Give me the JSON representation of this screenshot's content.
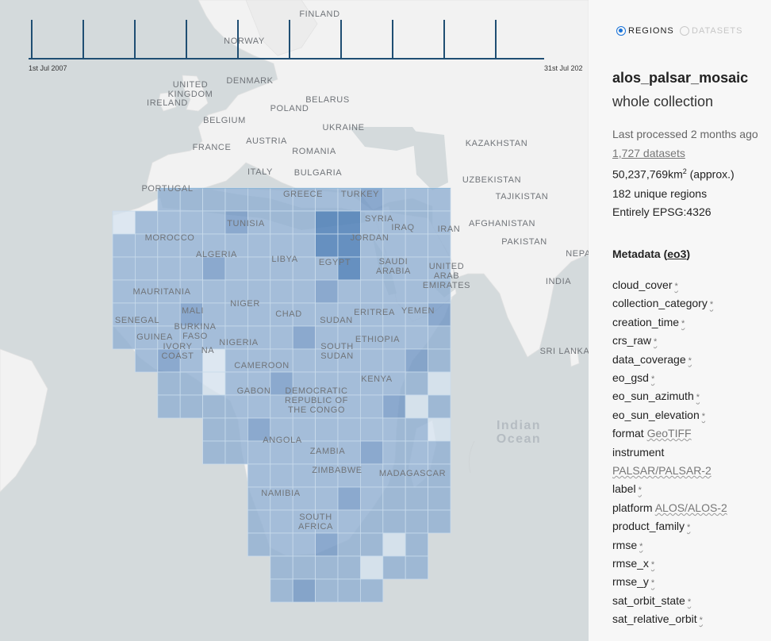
{
  "timeline": {
    "start_label": "1st Jul 2007",
    "end_label": "31st Jul 202"
  },
  "map": {
    "labels": [
      {
        "id": "finland",
        "text": "FINLAND"
      },
      {
        "id": "norway",
        "text": "NORWAY"
      },
      {
        "id": "uk",
        "text": "UNITED\nKINGDOM"
      },
      {
        "id": "denmark",
        "text": "DENMARK"
      },
      {
        "id": "ireland",
        "text": "IRELAND"
      },
      {
        "id": "belarus",
        "text": "BELARUS"
      },
      {
        "id": "poland",
        "text": "POLAND"
      },
      {
        "id": "belgium",
        "text": "BELGIUM"
      },
      {
        "id": "ukraine",
        "text": "UKRAINE"
      },
      {
        "id": "kazakhstan",
        "text": "KAZAKHSTAN"
      },
      {
        "id": "austria",
        "text": "AUSTRIA"
      },
      {
        "id": "france",
        "text": "FRANCE"
      },
      {
        "id": "romania",
        "text": "ROMANIA"
      },
      {
        "id": "italy",
        "text": "ITALY"
      },
      {
        "id": "bulgaria",
        "text": "BULGARIA"
      },
      {
        "id": "uzbekistan",
        "text": "UZBEKISTAN"
      },
      {
        "id": "portugal",
        "text": "PORTUGAL"
      },
      {
        "id": "greece",
        "text": "GREECE"
      },
      {
        "id": "turkey",
        "text": "TURKEY"
      },
      {
        "id": "tajikistan",
        "text": "TAJIKISTAN"
      },
      {
        "id": "syria",
        "text": "SYRIA"
      },
      {
        "id": "afghanistan",
        "text": "AFGHANISTAN"
      },
      {
        "id": "tunisia",
        "text": "TUNISIA"
      },
      {
        "id": "iraq",
        "text": "IRAQ"
      },
      {
        "id": "iran",
        "text": "IRAN"
      },
      {
        "id": "morocco",
        "text": "MOROCCO"
      },
      {
        "id": "jordan",
        "text": "JORDAN"
      },
      {
        "id": "pakistan",
        "text": "PAKISTAN"
      },
      {
        "id": "algeria",
        "text": "ALGERIA"
      },
      {
        "id": "libya",
        "text": "LIBYA"
      },
      {
        "id": "nepal",
        "text": "NEPA"
      },
      {
        "id": "egypt",
        "text": "EGYPT"
      },
      {
        "id": "saudi",
        "text": "SAUDI\nARABIA"
      },
      {
        "id": "uae",
        "text": "UNITED\nARAB\nEMIRATES"
      },
      {
        "id": "india",
        "text": "INDIA"
      },
      {
        "id": "mauritania",
        "text": "MAURITANIA"
      },
      {
        "id": "niger",
        "text": "NIGER"
      },
      {
        "id": "mali",
        "text": "MALI"
      },
      {
        "id": "chad",
        "text": "CHAD"
      },
      {
        "id": "eritrea",
        "text": "ERITREA"
      },
      {
        "id": "yemen",
        "text": "YEMEN"
      },
      {
        "id": "senegal",
        "text": "SENEGAL"
      },
      {
        "id": "sudan",
        "text": "SUDAN"
      },
      {
        "id": "burkina",
        "text": "BURKINA\nFASO"
      },
      {
        "id": "guinea",
        "text": "GUINEA"
      },
      {
        "id": "ivory",
        "text": "IVORY\nCOAST"
      },
      {
        "id": "ghana",
        "text": "NA"
      },
      {
        "id": "nigeria",
        "text": "NIGERIA"
      },
      {
        "id": "ethiopia",
        "text": "ETHIOPIA"
      },
      {
        "id": "southsudan",
        "text": "SOUTH\nSUDAN"
      },
      {
        "id": "srilanka",
        "text": "SRI LANKA"
      },
      {
        "id": "cameroon",
        "text": "CAMEROON"
      },
      {
        "id": "kenya",
        "text": "KENYA"
      },
      {
        "id": "gabon",
        "text": "GABON"
      },
      {
        "id": "drc",
        "text": "DEMOCRATIC\nREPUBLIC OF\nTHE CONGO"
      },
      {
        "id": "angola",
        "text": "ANGOLA"
      },
      {
        "id": "zambia",
        "text": "ZAMBIA"
      },
      {
        "id": "zimbabwe",
        "text": "ZIMBABWE"
      },
      {
        "id": "madagascar",
        "text": "MADAGASCAR"
      },
      {
        "id": "namibia",
        "text": "NAMIBIA"
      },
      {
        "id": "southafrica",
        "text": "SOUTH\nAFRICA"
      }
    ],
    "ocean_label": "Indian\nOcean"
  },
  "panel": {
    "tab_regions": "REGIONS",
    "tab_datasets": "DATASETS",
    "product_name": "alos_palsar_mosaic",
    "product_sub": "whole collection",
    "last_processed": "Last processed 2 months ago",
    "datasets_link": "1,727 datasets",
    "area_value": "50,237,769km",
    "area_sup": "2",
    "area_suffix": " (approx.)",
    "regions_count": "182 unique regions",
    "crs": "Entirely EPSG:4326",
    "metadata_title": "Metadata (",
    "metadata_link": "eo3",
    "metadata_close": ")",
    "star": "*",
    "fields": [
      {
        "name": "cloud_cover",
        "value": ""
      },
      {
        "name": "collection_category",
        "value": ""
      },
      {
        "name": "creation_time",
        "value": ""
      },
      {
        "name": "crs_raw",
        "value": ""
      },
      {
        "name": "data_coverage",
        "value": ""
      },
      {
        "name": "eo_gsd",
        "value": ""
      },
      {
        "name": "eo_sun_azimuth",
        "value": ""
      },
      {
        "name": "eo_sun_elevation",
        "value": ""
      },
      {
        "name": "format",
        "value": "GeoTIFF"
      },
      {
        "name": "instrument",
        "value": ""
      },
      {
        "name": "instrument_value",
        "value": "PALSAR/PALSAR-2"
      },
      {
        "name": "label",
        "value": ""
      },
      {
        "name": "platform",
        "value": "ALOS/ALOS-2"
      },
      {
        "name": "product_family",
        "value": ""
      },
      {
        "name": "rmse",
        "value": ""
      },
      {
        "name": "rmse_x",
        "value": ""
      },
      {
        "name": "rmse_y",
        "value": ""
      },
      {
        "name": "sat_orbit_state",
        "value": ""
      },
      {
        "name": "sat_relative_orbit",
        "value": ""
      }
    ]
  },
  "colors": {
    "water": "#d4dadc",
    "land": "#f2f2f2",
    "tile_base": "#8eaed2",
    "tile_dark": "#4d7fb7",
    "tile_light": "#d6e3f0",
    "tile_border": "#7ab3d9",
    "accent": "#1a73d9"
  }
}
